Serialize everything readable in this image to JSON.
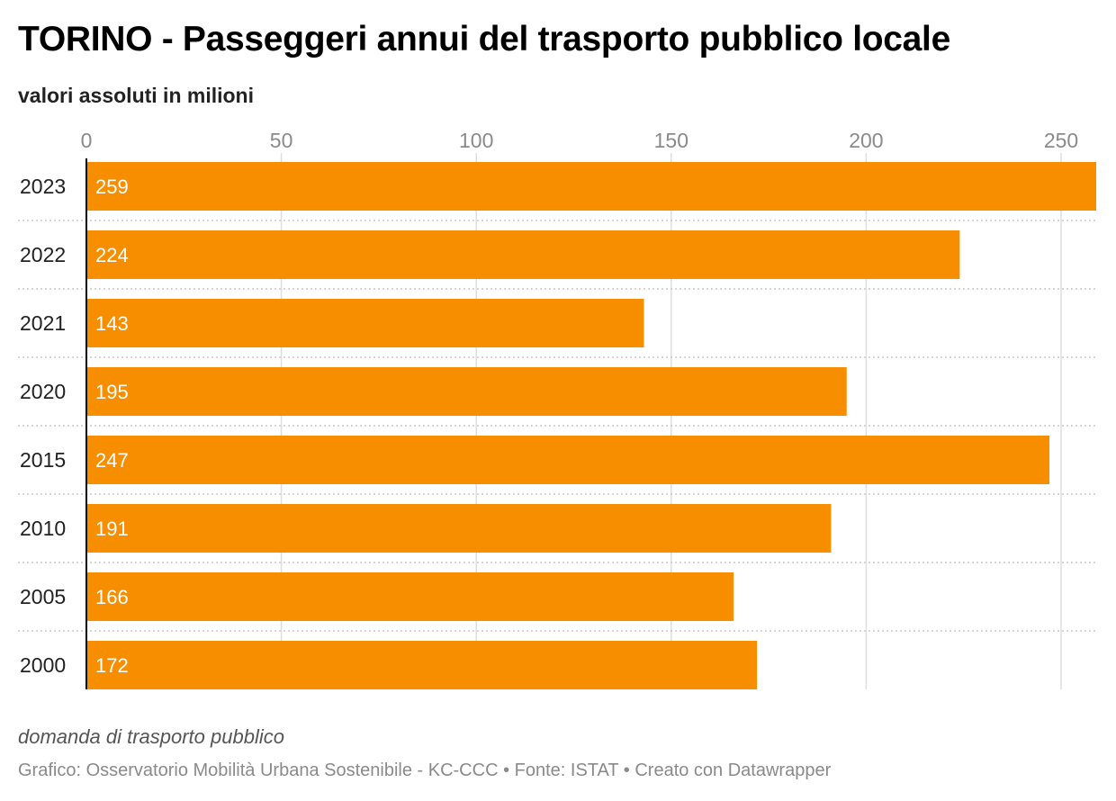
{
  "header": {
    "title": "TORINO - Passeggeri annui del trasporto pubblico locale",
    "subtitle": "valori assoluti in milioni"
  },
  "chart_data": {
    "type": "bar",
    "orientation": "horizontal",
    "categories": [
      "2023",
      "2022",
      "2021",
      "2020",
      "2015",
      "2010",
      "2005",
      "2000"
    ],
    "values": [
      259,
      224,
      143,
      195,
      247,
      191,
      166,
      172
    ],
    "xticks": [
      0,
      50,
      100,
      150,
      200,
      250
    ],
    "xlim": [
      0,
      259
    ],
    "bar_color": "#f68e00",
    "grid": true,
    "title": "TORINO - Passeggeri annui del trasporto pubblico locale",
    "subtitle": "valori assoluti in milioni"
  },
  "footer": {
    "notes": "domanda di trasporto pubblico",
    "credits": "Grafico: Osservatorio Mobilità Urbana Sostenibile - KC-CCC • Fonte: ISTAT • Creato con Datawrapper"
  }
}
